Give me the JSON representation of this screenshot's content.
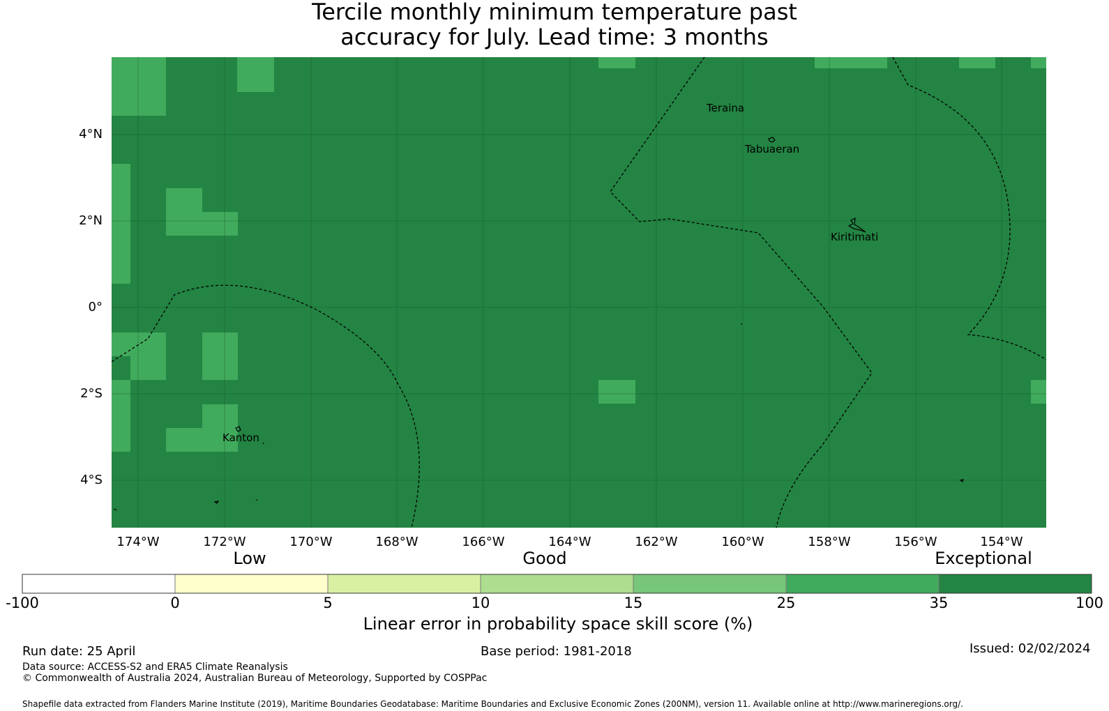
{
  "title_line1": "Tercile monthly minimum temperature past",
  "title_line2": "accuracy for July. Lead time: 3 months",
  "map": {
    "lat_ticks": [
      "4°N",
      "2°N",
      "0°",
      "2°S",
      "4°S"
    ],
    "lon_ticks": [
      "174°W",
      "172°W",
      "170°W",
      "168°W",
      "166°W",
      "164°W",
      "162°W",
      "160°W",
      "158°W",
      "156°W",
      "154°W"
    ],
    "places": [
      "Teraina",
      "Tabuaeran",
      "Kiritimati",
      "Kanton"
    ],
    "colors": {
      "exceptional": "#238443",
      "very_good": "#41ab5d",
      "eez_line": "#000000"
    },
    "skill_class_background": "35 to 100",
    "skill_class_patches": "25 to 35"
  },
  "colorbar": {
    "categories": [
      "Low",
      "Good",
      "Exceptional"
    ],
    "ticks": [
      "-100",
      "0",
      "5",
      "10",
      "15",
      "25",
      "35",
      "100"
    ],
    "colors": [
      "#ffffff",
      "#ffffcc",
      "#d9f0a3",
      "#addd8e",
      "#78c679",
      "#41ab5d",
      "#238443"
    ],
    "label": "Linear error in probability space skill score (%)"
  },
  "footer": {
    "run_date": "Run date: 25 April",
    "base_period": "Base period: 1981-2018",
    "issued": "Issued: 02/02/2024",
    "data_source": "Data source: ACCESS-S2 and ERA5 Climate Reanalysis",
    "copyright": "© Commonwealth of Australia 2024, Australian Bureau of Meteorology, Supported by COSPPac",
    "shapefile": "Shapefile data extracted from Flanders Marine Institute (2019), Maritime Boundaries Geodatabase: Maritime Boundaries and Exclusive Economic Zones (200NM), version 11. Available online at http://www.marineregions.org/."
  }
}
